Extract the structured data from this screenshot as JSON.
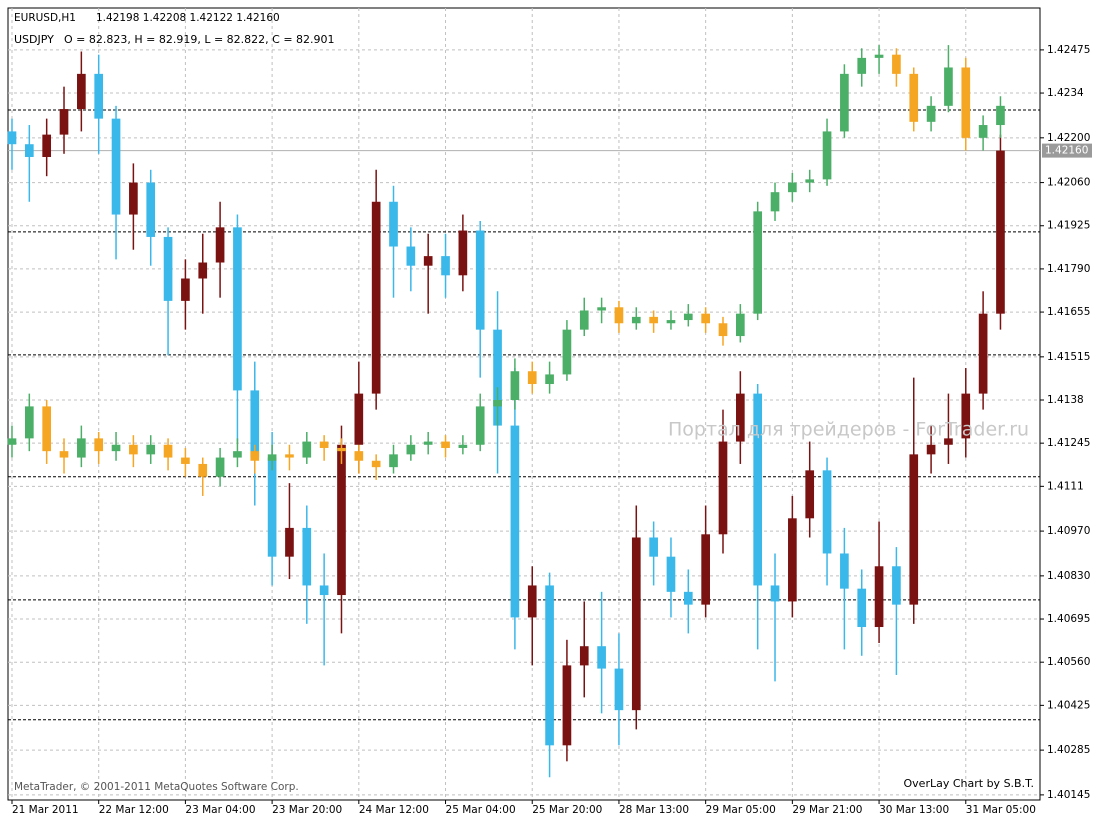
{
  "chart_data": {
    "type": "candlestick",
    "quote": "1.42198 1.42208 1.42122 1.42160",
    "watermark": "Портал для трейдеров - ForTrader.ru",
    "copyright": "MetaTrader, © 2001-2011 MetaQuotes Software Corp.",
    "credit": "OverLay Chart by S.B.T.",
    "grid": true,
    "last_price": {
      "value": 1.4216,
      "label": "1.42160"
    },
    "hlines": [
      1.42287,
      1.41906,
      1.41521,
      1.4114,
      1.40755,
      1.4038
    ],
    "xlim": [
      -0.23,
      59.28
    ],
    "xticks": [
      {
        "value": 0,
        "label": "21 Mar 2011"
      },
      {
        "value": 5,
        "label": "22 Mar 12:00"
      },
      {
        "value": 10,
        "label": "23 Mar 04:00"
      },
      {
        "value": 15,
        "label": "23 Mar 20:00"
      },
      {
        "value": 20,
        "label": "24 Mar 12:00"
      },
      {
        "value": 25,
        "label": "25 Mar 04:00"
      },
      {
        "value": 30,
        "label": "25 Mar 20:00"
      },
      {
        "value": 35,
        "label": "28 Mar 13:00"
      },
      {
        "value": 40,
        "label": "29 Mar 05:00"
      },
      {
        "value": 45,
        "label": "29 Mar 21:00"
      },
      {
        "value": 50,
        "label": "30 Mar 13:00"
      },
      {
        "value": 55,
        "label": "31 Mar 05:00"
      }
    ],
    "ylim": [
      1.40129,
      1.42606
    ],
    "yticks": [
      1.42475,
      1.4234,
      {
        "value": 1.422,
        "label": "1.42200"
      },
      {
        "value": 1.4206,
        "label": "1.42060"
      },
      1.41925,
      {
        "value": 1.4179,
        "label": "1.41790"
      },
      1.41655,
      1.41515,
      1.4138,
      1.41245,
      1.4111,
      {
        "value": 1.4097,
        "label": "1.40970"
      },
      {
        "value": 1.4083,
        "label": "1.40830"
      },
      1.40695,
      {
        "value": 1.4056,
        "label": "1.40560"
      },
      1.40425,
      1.40285,
      1.40145
    ],
    "series": [
      {
        "name": "EURUSD,H1",
        "up_color": "#7a1212",
        "down_color": "#3ab8ea",
        "open": [
          1.4222,
          1.4218,
          1.4214,
          1.4221,
          1.4229,
          1.424,
          1.4226,
          1.4196,
          1.4206,
          1.4189,
          1.4169,
          1.4176,
          1.4181,
          1.4192,
          1.4141,
          1.412,
          1.4089,
          1.4098,
          1.408,
          1.4077,
          1.4124,
          1.414,
          1.42,
          1.4186,
          1.418,
          1.4183,
          1.4177,
          1.4191,
          1.416,
          1.413,
          1.407,
          1.408,
          1.403,
          1.4055,
          1.4061,
          1.4054,
          1.4041,
          1.4095,
          1.4089,
          1.4078,
          1.4074,
          1.4096,
          1.4125,
          1.414,
          1.408,
          1.4075,
          1.4101,
          1.4116,
          1.409,
          1.4079,
          1.4067,
          1.4086,
          1.4074,
          1.4121,
          1.4124,
          1.4126,
          1.414,
          1.4165
        ],
        "high": [
          1.4226,
          1.4224,
          1.4226,
          1.4236,
          1.4247,
          1.4246,
          1.423,
          1.4212,
          1.421,
          1.4192,
          1.4182,
          1.419,
          1.42,
          1.4196,
          1.415,
          1.4128,
          1.4112,
          1.4105,
          1.409,
          1.413,
          1.415,
          1.421,
          1.4205,
          1.4192,
          1.419,
          1.419,
          1.4196,
          1.4194,
          1.4172,
          1.4148,
          1.4086,
          1.4084,
          1.4063,
          1.4075,
          1.4078,
          1.4065,
          1.4105,
          1.41,
          1.4095,
          1.4085,
          1.4105,
          1.4135,
          1.4147,
          1.4143,
          1.409,
          1.4108,
          1.4125,
          1.412,
          1.4098,
          1.4085,
          1.41,
          1.4092,
          1.4145,
          1.413,
          1.414,
          1.4148,
          1.4172,
          1.4221
        ],
        "low": [
          1.421,
          1.42,
          1.4208,
          1.4215,
          1.4222,
          1.4215,
          1.4182,
          1.4185,
          1.418,
          1.4152,
          1.416,
          1.4165,
          1.417,
          1.4125,
          1.4105,
          1.408,
          1.4082,
          1.4068,
          1.4055,
          1.4065,
          1.4115,
          1.4135,
          1.417,
          1.4172,
          1.4165,
          1.417,
          1.4172,
          1.4145,
          1.4115,
          1.406,
          1.4055,
          1.402,
          1.4025,
          1.4045,
          1.404,
          1.403,
          1.4035,
          1.408,
          1.407,
          1.4065,
          1.407,
          1.409,
          1.4118,
          1.406,
          1.405,
          1.407,
          1.4095,
          1.408,
          1.406,
          1.4058,
          1.4062,
          1.4052,
          1.4068,
          1.4115,
          1.4118,
          1.412,
          1.4135,
          1.416
        ],
        "close": [
          1.4218,
          1.4214,
          1.4221,
          1.4229,
          1.424,
          1.4226,
          1.4196,
          1.4206,
          1.4189,
          1.4169,
          1.4176,
          1.4181,
          1.4192,
          1.4141,
          1.412,
          1.4089,
          1.4098,
          1.408,
          1.4077,
          1.4124,
          1.414,
          1.42,
          1.4186,
          1.418,
          1.4183,
          1.4177,
          1.4191,
          1.416,
          1.413,
          1.407,
          1.408,
          1.403,
          1.4055,
          1.4061,
          1.4054,
          1.4041,
          1.4095,
          1.4089,
          1.4078,
          1.4074,
          1.4096,
          1.4125,
          1.414,
          1.408,
          1.4075,
          1.4101,
          1.4116,
          1.409,
          1.4079,
          1.4067,
          1.4086,
          1.4074,
          1.4121,
          1.4124,
          1.4126,
          1.414,
          1.4165,
          1.4216
        ]
      },
      {
        "name": "USDJPY",
        "quote": "O = 82.823, H = 82.919, L = 82.822, C = 82.901",
        "up_color": "#4caf68",
        "down_color": "#f5a623",
        "open": [
          1.4124,
          1.4126,
          1.4136,
          1.4122,
          1.412,
          1.4126,
          1.4122,
          1.4124,
          1.4121,
          1.4124,
          1.412,
          1.4118,
          1.4114,
          1.412,
          1.4122,
          1.4119,
          1.4121,
          1.412,
          1.4125,
          1.4123,
          1.4122,
          1.4119,
          1.4117,
          1.4121,
          1.4124,
          1.4125,
          1.4123,
          1.4124,
          1.4136,
          1.4138,
          1.4147,
          1.4143,
          1.4146,
          1.416,
          1.4166,
          1.4167,
          1.4162,
          1.4164,
          1.4162,
          1.4163,
          1.4165,
          1.4162,
          1.4158,
          1.4165,
          1.4197,
          1.4203,
          1.4206,
          1.4207,
          1.4222,
          1.424,
          1.4245,
          1.4246,
          1.424,
          1.4225,
          1.423,
          1.4242,
          1.422,
          1.4224
        ],
        "high": [
          1.413,
          1.414,
          1.4138,
          1.4126,
          1.413,
          1.4128,
          1.4128,
          1.4127,
          1.4127,
          1.4126,
          1.4123,
          1.412,
          1.4123,
          1.4126,
          1.4124,
          1.4124,
          1.4124,
          1.4128,
          1.4127,
          1.4126,
          1.4124,
          1.4121,
          1.4124,
          1.4127,
          1.4128,
          1.4127,
          1.4127,
          1.414,
          1.4142,
          1.4151,
          1.415,
          1.415,
          1.4163,
          1.417,
          1.417,
          1.4169,
          1.4167,
          1.4166,
          1.4166,
          1.4168,
          1.4167,
          1.4164,
          1.4168,
          1.42,
          1.4206,
          1.4209,
          1.421,
          1.4226,
          1.4243,
          1.4248,
          1.4249,
          1.4248,
          1.4242,
          1.4233,
          1.4249,
          1.4245,
          1.4227,
          1.4233
        ],
        "low": [
          1.412,
          1.4122,
          1.4118,
          1.4115,
          1.4117,
          1.4118,
          1.4119,
          1.4117,
          1.4118,
          1.4116,
          1.4114,
          1.4108,
          1.4111,
          1.4117,
          1.4115,
          1.4116,
          1.4116,
          1.4118,
          1.4119,
          1.4118,
          1.4115,
          1.4113,
          1.4115,
          1.4119,
          1.4121,
          1.412,
          1.4121,
          1.4122,
          1.413,
          1.4135,
          1.414,
          1.414,
          1.4144,
          1.4158,
          1.4162,
          1.4159,
          1.416,
          1.4159,
          1.416,
          1.4161,
          1.4159,
          1.4155,
          1.4156,
          1.4163,
          1.4194,
          1.42,
          1.4203,
          1.4205,
          1.422,
          1.4236,
          1.424,
          1.4236,
          1.4222,
          1.4222,
          1.4228,
          1.4216,
          1.4216,
          1.422
        ],
        "close": [
          1.4126,
          1.4136,
          1.4122,
          1.412,
          1.4126,
          1.4122,
          1.4124,
          1.4121,
          1.4124,
          1.412,
          1.4118,
          1.4114,
          1.412,
          1.4122,
          1.4119,
          1.4121,
          1.412,
          1.4125,
          1.4123,
          1.4122,
          1.4119,
          1.4117,
          1.4121,
          1.4124,
          1.4125,
          1.4123,
          1.4124,
          1.4136,
          1.4138,
          1.4147,
          1.4143,
          1.4146,
          1.416,
          1.4166,
          1.4167,
          1.4162,
          1.4164,
          1.4162,
          1.4163,
          1.4165,
          1.4162,
          1.4158,
          1.4165,
          1.4197,
          1.4203,
          1.4206,
          1.4207,
          1.4222,
          1.424,
          1.4245,
          1.4246,
          1.424,
          1.4225,
          1.423,
          1.4242,
          1.422,
          1.4224,
          1.423
        ]
      }
    ]
  }
}
